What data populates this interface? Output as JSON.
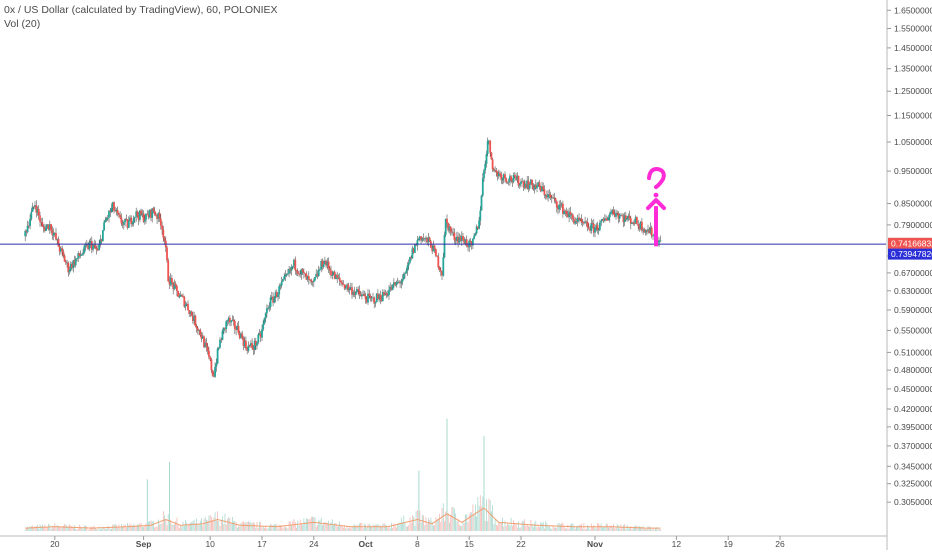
{
  "legend": {
    "symbol_line": "0x / US Dollar (calculated by TradingView), 60, POLONIEX",
    "volume_line": "Vol (20)"
  },
  "chart_data": {
    "type": "candlestick",
    "title": "0x / US Dollar (calculated by TradingView), 60, POLONIEX",
    "xlabel": "",
    "ylabel": "",
    "ylim": [
      0.285,
      1.68
    ],
    "grid": false,
    "price_scale_type": "log",
    "y_tick_labels": [
      "1.65000000",
      "1.55000000",
      "1.45000000",
      "1.35000000",
      "1.25000000",
      "1.15000000",
      "1.05000000",
      "0.95000000",
      "0.85000000",
      "0.79000000",
      "0.71000000",
      "0.67000000",
      "0.63000000",
      "0.59000000",
      "0.55000000",
      "0.51000000",
      "0.48000000",
      "0.45000000",
      "0.42000000",
      "0.39500000",
      "0.37000000",
      "0.34500000",
      "0.32500000",
      "0.30500000"
    ],
    "x_tick_labels": [
      {
        "label": "20",
        "day": 20
      },
      {
        "label": "Sep",
        "day": 32
      },
      {
        "label": "10",
        "day": 41
      },
      {
        "label": "17",
        "day": 48
      },
      {
        "label": "24",
        "day": 55
      },
      {
        "label": "Oct",
        "day": 62
      },
      {
        "label": "8",
        "day": 69
      },
      {
        "label": "15",
        "day": 76
      },
      {
        "label": "22",
        "day": 83
      },
      {
        "label": "Nov",
        "day": 93
      },
      {
        "label": "12",
        "day": 104
      },
      {
        "label": "19",
        "day": 111
      },
      {
        "label": "26",
        "day": 118
      }
    ],
    "last_price_label": "0.74166832",
    "horizontal_line_label": "0.73947826",
    "horizontal_line_value": 0.73947826,
    "last_price_value": 0.74166832,
    "price_path": [
      {
        "day": 16.0,
        "price": 0.76
      },
      {
        "day": 17.5,
        "price": 0.85
      },
      {
        "day": 18.5,
        "price": 0.78
      },
      {
        "day": 19.5,
        "price": 0.79
      },
      {
        "day": 21.0,
        "price": 0.72
      },
      {
        "day": 22.0,
        "price": 0.68
      },
      {
        "day": 23.0,
        "price": 0.7
      },
      {
        "day": 24.0,
        "price": 0.72
      },
      {
        "day": 25.0,
        "price": 0.74
      },
      {
        "day": 26.0,
        "price": 0.72
      },
      {
        "day": 27.0,
        "price": 0.8
      },
      {
        "day": 28.0,
        "price": 0.84
      },
      {
        "day": 29.0,
        "price": 0.8
      },
      {
        "day": 30.0,
        "price": 0.79
      },
      {
        "day": 31.0,
        "price": 0.82
      },
      {
        "day": 32.5,
        "price": 0.81
      },
      {
        "day": 33.5,
        "price": 0.83
      },
      {
        "day": 34.5,
        "price": 0.8
      },
      {
        "day": 35.0,
        "price": 0.75
      },
      {
        "day": 35.5,
        "price": 0.66
      },
      {
        "day": 36.5,
        "price": 0.63
      },
      {
        "day": 38.0,
        "price": 0.6
      },
      {
        "day": 39.0,
        "price": 0.57
      },
      {
        "day": 40.0,
        "price": 0.54
      },
      {
        "day": 41.0,
        "price": 0.5
      },
      {
        "day": 41.6,
        "price": 0.47
      },
      {
        "day": 42.5,
        "price": 0.53
      },
      {
        "day": 43.5,
        "price": 0.57
      },
      {
        "day": 45.0,
        "price": 0.55
      },
      {
        "day": 46.0,
        "price": 0.52
      },
      {
        "day": 47.0,
        "price": 0.52
      },
      {
        "day": 48.0,
        "price": 0.54
      },
      {
        "day": 49.0,
        "price": 0.6
      },
      {
        "day": 50.0,
        "price": 0.62
      },
      {
        "day": 51.5,
        "price": 0.66
      },
      {
        "day": 52.5,
        "price": 0.69
      },
      {
        "day": 54.0,
        "price": 0.66
      },
      {
        "day": 55.0,
        "price": 0.64
      },
      {
        "day": 56.5,
        "price": 0.7
      },
      {
        "day": 58.0,
        "price": 0.66
      },
      {
        "day": 59.5,
        "price": 0.64
      },
      {
        "day": 60.5,
        "price": 0.63
      },
      {
        "day": 61.5,
        "price": 0.62
      },
      {
        "day": 63.0,
        "price": 0.61
      },
      {
        "day": 64.5,
        "price": 0.62
      },
      {
        "day": 66.0,
        "price": 0.64
      },
      {
        "day": 67.5,
        "price": 0.66
      },
      {
        "day": 68.5,
        "price": 0.72
      },
      {
        "day": 69.5,
        "price": 0.76
      },
      {
        "day": 71.0,
        "price": 0.74
      },
      {
        "day": 72.5,
        "price": 0.67
      },
      {
        "day": 73.0,
        "price": 0.8
      },
      {
        "day": 74.0,
        "price": 0.76
      },
      {
        "day": 75.5,
        "price": 0.75
      },
      {
        "day": 76.5,
        "price": 0.73
      },
      {
        "day": 77.5,
        "price": 0.8
      },
      {
        "day": 78.0,
        "price": 0.92
      },
      {
        "day": 78.7,
        "price": 1.06
      },
      {
        "day": 79.5,
        "price": 0.95
      },
      {
        "day": 81.0,
        "price": 0.93
      },
      {
        "day": 82.5,
        "price": 0.92
      },
      {
        "day": 84.0,
        "price": 0.91
      },
      {
        "day": 85.5,
        "price": 0.9
      },
      {
        "day": 87.0,
        "price": 0.87
      },
      {
        "day": 88.5,
        "price": 0.84
      },
      {
        "day": 90.0,
        "price": 0.81
      },
      {
        "day": 91.5,
        "price": 0.79
      },
      {
        "day": 93.0,
        "price": 0.78
      },
      {
        "day": 94.0,
        "price": 0.79
      },
      {
        "day": 95.5,
        "price": 0.83
      },
      {
        "day": 97.0,
        "price": 0.81
      },
      {
        "day": 98.5,
        "price": 0.8
      },
      {
        "day": 100.0,
        "price": 0.78
      },
      {
        "day": 101.5,
        "price": 0.76
      },
      {
        "day": 102.0,
        "price": 0.742
      }
    ],
    "volume_path": [
      {
        "day": 16,
        "v": 1
      },
      {
        "day": 20,
        "v": 1.5
      },
      {
        "day": 25,
        "v": 1
      },
      {
        "day": 30,
        "v": 1.5
      },
      {
        "day": 33,
        "v": 2
      },
      {
        "day": 35,
        "v": 4
      },
      {
        "day": 37,
        "v": 2
      },
      {
        "day": 40,
        "v": 2.5
      },
      {
        "day": 42,
        "v": 4
      },
      {
        "day": 45,
        "v": 2
      },
      {
        "day": 50,
        "v": 1.5
      },
      {
        "day": 55,
        "v": 3
      },
      {
        "day": 60,
        "v": 1.5
      },
      {
        "day": 65,
        "v": 1.5
      },
      {
        "day": 69,
        "v": 4
      },
      {
        "day": 71,
        "v": 2.5
      },
      {
        "day": 73,
        "v": 6
      },
      {
        "day": 75,
        "v": 3
      },
      {
        "day": 78,
        "v": 8
      },
      {
        "day": 80,
        "v": 3
      },
      {
        "day": 85,
        "v": 2
      },
      {
        "day": 90,
        "v": 1.5
      },
      {
        "day": 95,
        "v": 1.5
      },
      {
        "day": 100,
        "v": 1
      },
      {
        "day": 102,
        "v": 1
      }
    ],
    "volume_spikes": [
      {
        "day": 32.5,
        "v": 12
      },
      {
        "day": 35.5,
        "v": 16
      },
      {
        "day": 69.2,
        "v": 14
      },
      {
        "day": 73.0,
        "v": 26
      },
      {
        "day": 78.0,
        "v": 22
      }
    ]
  }
}
